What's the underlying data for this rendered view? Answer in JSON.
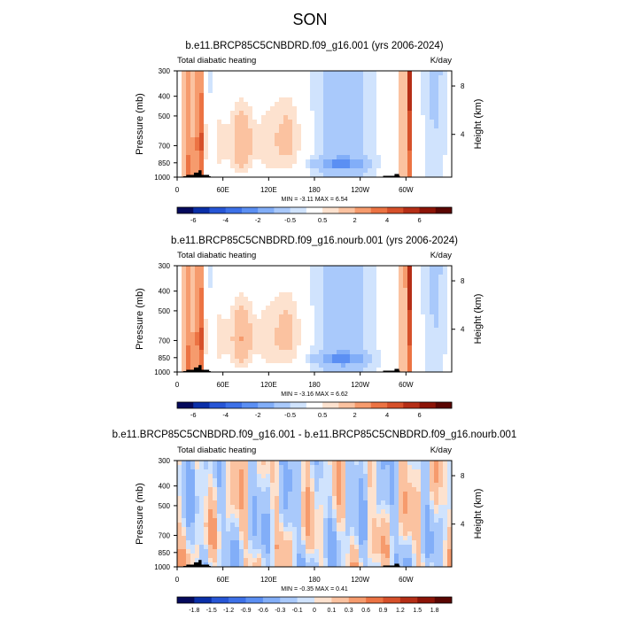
{
  "figure": {
    "title": "SON"
  },
  "chart_data": [
    {
      "type": "heatmap",
      "title": "b.e11.BRCP85C5CNBDRD.f09_g16.001 (yrs 2006-2024)",
      "variable_label": "Total diabatic heating",
      "units_label": "K/day",
      "ylabel": "Pressure (mb)",
      "right_ylabel": "Height (km)",
      "x_tick_labels": [
        "0",
        "60E",
        "120E",
        "180",
        "120W",
        "60W"
      ],
      "x_tick_lon": [
        0,
        60,
        120,
        180,
        240,
        300
      ],
      "xlim": [
        0,
        360
      ],
      "y_tick_labels": [
        "300",
        "400",
        "500",
        "700",
        "850",
        "1000"
      ],
      "y_tick_values": [
        300,
        400,
        500,
        700,
        850,
        1000
      ],
      "ylim": [
        1000,
        300
      ],
      "right_tick_labels": [
        "8",
        "4"
      ],
      "right_tick_pressure": [
        356,
        616
      ],
      "stats_text": "MIN =  -3.11   MAX =   6.54",
      "colorbar_labels": [
        "-6",
        "-4",
        "-2",
        "-0.5",
        "0.5",
        "2",
        "4",
        "6"
      ],
      "colorbar_levels": [
        -7,
        -6,
        -5,
        -4,
        -3,
        -2,
        -1,
        -0.5,
        0.5,
        1,
        2,
        3,
        4,
        5,
        6,
        7
      ],
      "colorbar_colors": [
        "#050a5c",
        "#0a2fa8",
        "#2756d6",
        "#3d71e8",
        "#5b8ff3",
        "#82aef8",
        "#a9c9fb",
        "#d0e3fd",
        "#ffffff",
        "#fde2cf",
        "#fbc2a0",
        "#f69b6d",
        "#ec7343",
        "#d6502a",
        "#b52e16",
        "#8c1407",
        "#5a0602"
      ]
    },
    {
      "type": "heatmap",
      "title": "b.e11.BRCP85C5CNBDRD.f09_g16.nourb.001 (yrs 2006-2024)",
      "variable_label": "Total diabatic heating",
      "units_label": "K/day",
      "ylabel": "Pressure (mb)",
      "right_ylabel": "Height (km)",
      "x_tick_labels": [
        "0",
        "60E",
        "120E",
        "180",
        "120W",
        "60W"
      ],
      "x_tick_lon": [
        0,
        60,
        120,
        180,
        240,
        300
      ],
      "xlim": [
        0,
        360
      ],
      "y_tick_labels": [
        "300",
        "400",
        "500",
        "700",
        "850",
        "1000"
      ],
      "y_tick_values": [
        300,
        400,
        500,
        700,
        850,
        1000
      ],
      "ylim": [
        1000,
        300
      ],
      "right_tick_labels": [
        "8",
        "4"
      ],
      "right_tick_pressure": [
        356,
        616
      ],
      "stats_text": "MIN =  -3.16   MAX =   6.62",
      "colorbar_labels": [
        "-6",
        "-4",
        "-2",
        "-0.5",
        "0.5",
        "2",
        "4",
        "6"
      ],
      "colorbar_levels": [
        -7,
        -6,
        -5,
        -4,
        -3,
        -2,
        -1,
        -0.5,
        0.5,
        1,
        2,
        3,
        4,
        5,
        6,
        7
      ],
      "colorbar_colors": [
        "#050a5c",
        "#0a2fa8",
        "#2756d6",
        "#3d71e8",
        "#5b8ff3",
        "#82aef8",
        "#a9c9fb",
        "#d0e3fd",
        "#ffffff",
        "#fde2cf",
        "#fbc2a0",
        "#f69b6d",
        "#ec7343",
        "#d6502a",
        "#b52e16",
        "#8c1407",
        "#5a0602"
      ]
    },
    {
      "type": "heatmap",
      "title": "b.e11.BRCP85C5CNBDRD.f09_g16.001 - b.e11.BRCP85C5CNBDRD.f09_g16.nourb.001",
      "variable_label": "Total diabatic heating",
      "units_label": "K/day",
      "ylabel": "Pressure (mb)",
      "right_ylabel": "Height (km)",
      "x_tick_labels": [
        "0",
        "60E",
        "120E",
        "180",
        "120W",
        "60W"
      ],
      "x_tick_lon": [
        0,
        60,
        120,
        180,
        240,
        300
      ],
      "xlim": [
        0,
        360
      ],
      "y_tick_labels": [
        "300",
        "400",
        "500",
        "700",
        "850",
        "1000"
      ],
      "y_tick_values": [
        300,
        400,
        500,
        700,
        850,
        1000
      ],
      "ylim": [
        1000,
        300
      ],
      "right_tick_labels": [
        "8",
        "4"
      ],
      "right_tick_pressure": [
        356,
        616
      ],
      "stats_text": "MIN =  -0.35   MAX =   0.41",
      "colorbar_labels": [
        "-1.8",
        "-1.5",
        "-1.2",
        "-0.9",
        "-0.6",
        "-0.3",
        "-0.1",
        "0",
        "0.1",
        "0.3",
        "0.6",
        "0.9",
        "1.2",
        "1.5",
        "1.8"
      ],
      "colorbar_levels": [
        -1.8,
        -1.5,
        -1.2,
        -0.9,
        -0.6,
        -0.3,
        -0.1,
        0,
        0.1,
        0.3,
        0.6,
        0.9,
        1.2,
        1.5,
        1.8
      ],
      "colorbar_colors": [
        "#050a5c",
        "#0a2fa8",
        "#2756d6",
        "#3d71e8",
        "#5b8ff3",
        "#82aef8",
        "#a9c9fb",
        "#d0e3fd",
        "#fde2cf",
        "#fbc2a0",
        "#f69b6d",
        "#ec7343",
        "#d6502a",
        "#b52e16",
        "#8c1407",
        "#5a0602"
      ]
    }
  ]
}
